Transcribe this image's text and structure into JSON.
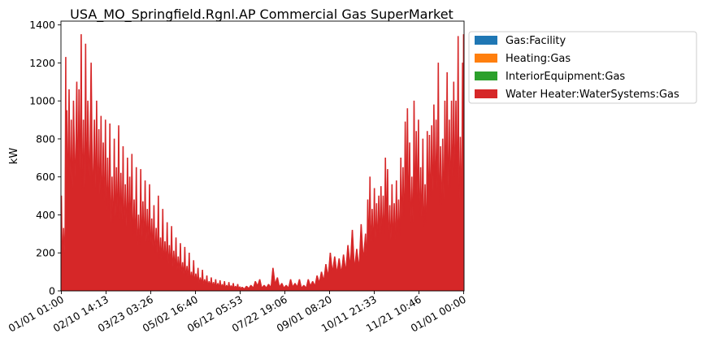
{
  "chart_data": {
    "type": "area",
    "title": "USA_MO_Springfield.Rgnl.AP Commercial Gas SuperMarket",
    "xlabel": "",
    "ylabel": "kW",
    "ylim": [
      0,
      1420
    ],
    "yticks": [
      0,
      200,
      400,
      600,
      800,
      1000,
      1200,
      1400
    ],
    "xlim": [
      -9,
      8769
    ],
    "xticks": [
      {
        "label": "01/01 01:00",
        "hour": 0
      },
      {
        "label": "02/10 14:13",
        "hour": 973.2
      },
      {
        "label": "03/23 03:26",
        "hour": 1946.4
      },
      {
        "label": "05/02 16:40",
        "hour": 2919.7
      },
      {
        "label": "06/12 05:53",
        "hour": 3892.9
      },
      {
        "label": "07/22 19:06",
        "hour": 4866.1
      },
      {
        "label": "09/01 08:20",
        "hour": 5839.3
      },
      {
        "label": "10/11 21:33",
        "hour": 6812.5
      },
      {
        "label": "11/21 10:46",
        "hour": 7785.8
      },
      {
        "label": "01/01 00:00",
        "hour": 8759
      }
    ],
    "grid": false,
    "legend_position": "outside-top-right",
    "x_unit": "hour of year",
    "peaks_x": [
      0,
      48,
      96,
      120,
      168,
      216,
      264,
      336,
      384,
      432,
      480,
      528,
      576,
      648,
      720,
      768,
      816,
      864,
      912,
      960,
      1008,
      1056,
      1104,
      1152,
      1200,
      1248,
      1296,
      1344,
      1392,
      1440,
      1488,
      1536,
      1584,
      1632,
      1680,
      1728,
      1776,
      1824,
      1872,
      1920,
      1968,
      2016,
      2064,
      2112,
      2160,
      2208,
      2256,
      2304,
      2352,
      2400,
      2448,
      2496,
      2544,
      2592,
      2640,
      2688,
      2736,
      2784,
      2832,
      2880,
      2928,
      2976,
      3024,
      3072,
      3120,
      3168,
      3216,
      3264,
      3312,
      3360,
      3408,
      3456,
      3504,
      3552,
      3600,
      3648,
      3696,
      3744,
      3792,
      3840,
      3888,
      3936,
      4032,
      4128,
      4224,
      4320,
      4416,
      4512,
      4608,
      4704,
      4800,
      4896,
      4992,
      5088,
      5184,
      5280,
      5376,
      5472,
      5568,
      5664,
      5760,
      5856,
      5952,
      6048,
      6144,
      6240,
      6336,
      6432,
      6528,
      6624,
      6672,
      6720,
      6768,
      6816,
      6864,
      6912,
      6960,
      7008,
      7056,
      7104,
      7152,
      7200,
      7248,
      7296,
      7344,
      7392,
      7440,
      7488,
      7536,
      7584,
      7632,
      7680,
      7728,
      7776,
      7824,
      7872,
      7920,
      7968,
      8016,
      8064,
      8112,
      8160,
      8208,
      8256,
      8304,
      8352,
      8400,
      8448,
      8496,
      8544,
      8592,
      8640,
      8688,
      8736,
      8759
    ],
    "series": [
      {
        "name": "Gas:Facility",
        "color": "#1f77b4",
        "values": []
      },
      {
        "name": "Heating:Gas",
        "color": "#ff7f0e",
        "values": []
      },
      {
        "name": "InteriorEquipment:Gas",
        "color": "#2ca02c",
        "values": []
      },
      {
        "name": "Water Heater:WaterSystems:Gas",
        "color": "#d62728",
        "values": [
          500,
          330,
          1230,
          950,
          1060,
          900,
          1000,
          1100,
          1060,
          1350,
          900,
          1300,
          1000,
          1200,
          900,
          1000,
          850,
          920,
          780,
          900,
          700,
          880,
          600,
          800,
          650,
          870,
          620,
          760,
          560,
          700,
          600,
          720,
          480,
          650,
          400,
          640,
          470,
          580,
          430,
          560,
          380,
          450,
          330,
          500,
          280,
          430,
          260,
          360,
          240,
          340,
          210,
          280,
          180,
          250,
          150,
          230,
          130,
          200,
          100,
          160,
          90,
          120,
          70,
          110,
          60,
          80,
          50,
          70,
          45,
          60,
          40,
          55,
          35,
          50,
          30,
          45,
          28,
          40,
          25,
          35,
          22,
          20,
          25,
          30,
          50,
          60,
          30,
          35,
          120,
          70,
          40,
          30,
          60,
          40,
          60,
          30,
          60,
          50,
          80,
          100,
          140,
          200,
          180,
          170,
          190,
          240,
          320,
          220,
          350,
          300,
          480,
          600,
          430,
          540,
          460,
          500,
          550,
          500,
          700,
          640,
          450,
          560,
          460,
          580,
          480,
          700,
          650,
          890,
          960,
          780,
          600,
          1000,
          840,
          900,
          650,
          800,
          560,
          840,
          820,
          870,
          980,
          900,
          1200,
          760,
          800,
          1000,
          1150,
          900,
          1000,
          1100,
          1000,
          1340,
          810,
          1200,
          1350
        ]
      }
    ]
  }
}
